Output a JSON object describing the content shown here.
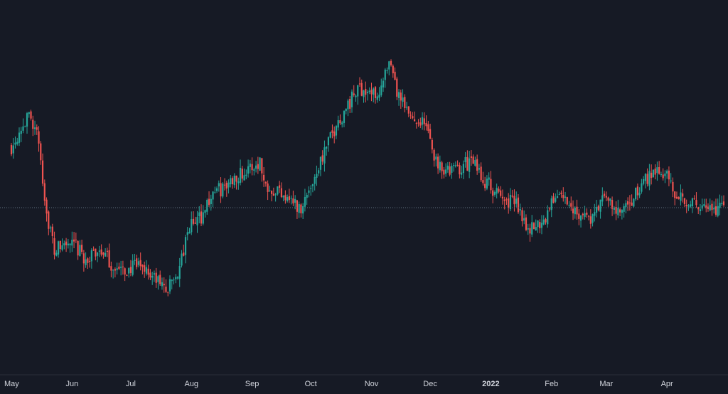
{
  "colors": {
    "background": "#161a25",
    "up": "#26a69a",
    "down": "#ef5350",
    "axis_text": "#d1d4dc",
    "axis_line": "#2a2e39",
    "last_price_line": "#5d6f7d"
  },
  "chart_data": {
    "type": "candlestick",
    "title": "",
    "xlabel": "",
    "ylabel": "",
    "x_range": [
      "2021-05-01",
      "2022-04-30"
    ],
    "y_range": [
      0,
      100
    ],
    "grid": false,
    "reference_line": 44.5,
    "x_ticks": [
      {
        "date": "2021-05-01",
        "label": "May",
        "bold": false
      },
      {
        "date": "2021-06-01",
        "label": "Jun",
        "bold": false
      },
      {
        "date": "2021-07-01",
        "label": "Jul",
        "bold": false
      },
      {
        "date": "2021-08-01",
        "label": "Aug",
        "bold": false
      },
      {
        "date": "2021-09-01",
        "label": "Sep",
        "bold": false
      },
      {
        "date": "2021-10-01",
        "label": "Oct",
        "bold": false
      },
      {
        "date": "2021-11-01",
        "label": "Nov",
        "bold": false
      },
      {
        "date": "2021-12-01",
        "label": "Dec",
        "bold": false
      },
      {
        "date": "2022-01-01",
        "label": "2022",
        "bold": true
      },
      {
        "date": "2022-02-01",
        "label": "Feb",
        "bold": false
      },
      {
        "date": "2022-03-01",
        "label": "Mar",
        "bold": false
      },
      {
        "date": "2022-04-01",
        "label": "Apr",
        "bold": false
      }
    ],
    "price_path": [
      [
        "2021-05-01",
        62
      ],
      [
        "2021-05-06",
        68
      ],
      [
        "2021-05-11",
        71
      ],
      [
        "2021-05-15",
        63
      ],
      [
        "2021-05-19",
        43
      ],
      [
        "2021-05-23",
        32
      ],
      [
        "2021-05-28",
        34
      ],
      [
        "2021-06-03",
        33
      ],
      [
        "2021-06-09",
        29
      ],
      [
        "2021-06-15",
        33
      ],
      [
        "2021-06-21",
        28
      ],
      [
        "2021-06-26",
        26
      ],
      [
        "2021-07-01",
        27
      ],
      [
        "2021-07-07",
        28
      ],
      [
        "2021-07-13",
        24
      ],
      [
        "2021-07-20",
        21
      ],
      [
        "2021-07-26",
        27
      ],
      [
        "2021-07-31",
        39
      ],
      [
        "2021-08-06",
        42
      ],
      [
        "2021-08-12",
        49
      ],
      [
        "2021-08-18",
        50
      ],
      [
        "2021-08-24",
        54
      ],
      [
        "2021-08-30",
        55
      ],
      [
        "2021-09-05",
        58
      ],
      [
        "2021-09-07",
        52
      ],
      [
        "2021-09-12",
        50
      ],
      [
        "2021-09-20",
        48
      ],
      [
        "2021-09-25",
        44
      ],
      [
        "2021-09-29",
        48
      ],
      [
        "2021-10-06",
        58
      ],
      [
        "2021-10-14",
        68
      ],
      [
        "2021-10-20",
        74
      ],
      [
        "2021-10-26",
        79
      ],
      [
        "2021-11-02",
        77
      ],
      [
        "2021-11-06",
        79
      ],
      [
        "2021-11-10",
        85
      ],
      [
        "2021-11-15",
        76
      ],
      [
        "2021-11-20",
        71
      ],
      [
        "2021-11-28",
        69
      ],
      [
        "2021-12-04",
        58
      ],
      [
        "2021-12-10",
        55
      ],
      [
        "2021-12-16",
        56
      ],
      [
        "2021-12-22",
        58
      ],
      [
        "2021-12-28",
        53
      ],
      [
        "2022-01-06",
        47
      ],
      [
        "2022-01-14",
        46
      ],
      [
        "2022-01-21",
        38
      ],
      [
        "2022-01-28",
        41
      ],
      [
        "2022-02-04",
        49
      ],
      [
        "2022-02-10",
        45
      ],
      [
        "2022-02-16",
        43
      ],
      [
        "2022-02-22",
        41
      ],
      [
        "2022-02-28",
        48
      ],
      [
        "2022-03-06",
        43
      ],
      [
        "2022-03-12",
        44
      ],
      [
        "2022-03-18",
        50
      ],
      [
        "2022-03-24",
        55
      ],
      [
        "2022-03-29",
        56
      ],
      [
        "2022-04-04",
        50
      ],
      [
        "2022-04-10",
        47
      ],
      [
        "2022-04-16",
        45
      ],
      [
        "2022-04-22",
        43
      ],
      [
        "2022-04-30",
        45
      ]
    ]
  }
}
